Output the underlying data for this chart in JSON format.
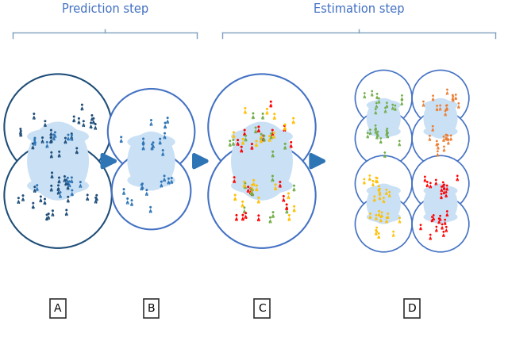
{
  "title_prediction": "Prediction step",
  "title_estimation": "Estimation step",
  "labels": [
    "A",
    "B",
    "C",
    "D"
  ],
  "arrow_color": "#2E75B6",
  "circle_fill_light": "#C9E0F5",
  "circle_fill_white": "#FFFFFF",
  "circle_fill_dark": "#D6E8F7",
  "circle_edge_dark": "#1F4E79",
  "circle_edge_med": "#4472C4",
  "dark_blue": "#1F4E79",
  "medium_blue": "#2E75B6",
  "light_blue": "#9DC3E6",
  "green": "#70AD47",
  "yellow": "#FFC000",
  "red": "#FF0000",
  "orange": "#ED7D31",
  "bracket_color": "#7F9FBF",
  "text_color": "#4472C4"
}
